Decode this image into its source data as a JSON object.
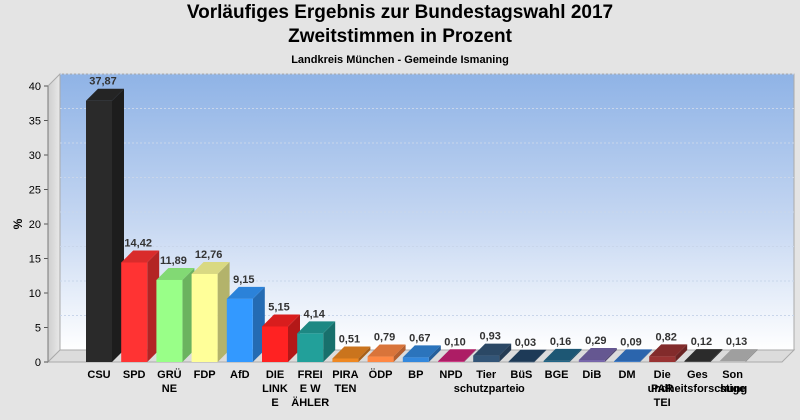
{
  "chart_data": {
    "type": "bar",
    "title": "Vorläufiges Ergebnis zur Bundestagswahl 2017",
    "subtitle": "Zweitstimmen in Prozent",
    "region": "Landkreis München - Gemeinde Ismaning",
    "ylabel": "%",
    "ylim": [
      0,
      40
    ],
    "yticks": [
      0,
      5,
      10,
      15,
      20,
      25,
      30,
      35,
      40
    ],
    "grid": true,
    "categories": [
      [
        "CSU"
      ],
      [
        "SPD"
      ],
      [
        "GRÜ",
        "NE"
      ],
      [
        "FDP"
      ],
      [
        "AfD"
      ],
      [
        "DIE",
        "LINK",
        "E"
      ],
      [
        "FREI",
        "E W",
        "ÄHLER"
      ],
      [
        "PIRA",
        "TEN"
      ],
      [
        "ÖDP"
      ],
      [
        "BP"
      ],
      [
        "NPD"
      ],
      [
        "Tier",
        "schutzpartei"
      ],
      [
        "BüS",
        "o"
      ],
      [
        "BGE"
      ],
      [
        "DiB"
      ],
      [
        "DM"
      ],
      [
        "Die",
        "PAR",
        "TEI"
      ],
      [
        "Ges",
        "undheitsforschung"
      ],
      [
        "Son",
        "stige"
      ]
    ],
    "values": [
      37.87,
      14.42,
      11.89,
      12.76,
      9.15,
      5.15,
      4.14,
      0.51,
      0.79,
      0.67,
      0.1,
      0.93,
      0.03,
      0.16,
      0.29,
      0.09,
      0.82,
      0.12,
      0.13
    ],
    "value_labels": [
      "37,87",
      "14,42",
      "11,89",
      "12,76",
      "9,15",
      "5,15",
      "4,14",
      "0,51",
      "0,79",
      "0,67",
      "0,10",
      "0,93",
      "0,03",
      "0,16",
      "0,29",
      "0,09",
      "0,82",
      "0,12",
      "0,13"
    ],
    "colors": [
      "#2a2a2a",
      "#ff3333",
      "#99ff88",
      "#ffff99",
      "#3399ff",
      "#ff2222",
      "#22a09a",
      "#ee8822",
      "#ff8844",
      "#3388dd",
      "#cc2277",
      "#335577",
      "#224466",
      "#226688",
      "#7766aa",
      "#3377cc",
      "#993333",
      "#333333",
      "#bbbbbb"
    ]
  }
}
